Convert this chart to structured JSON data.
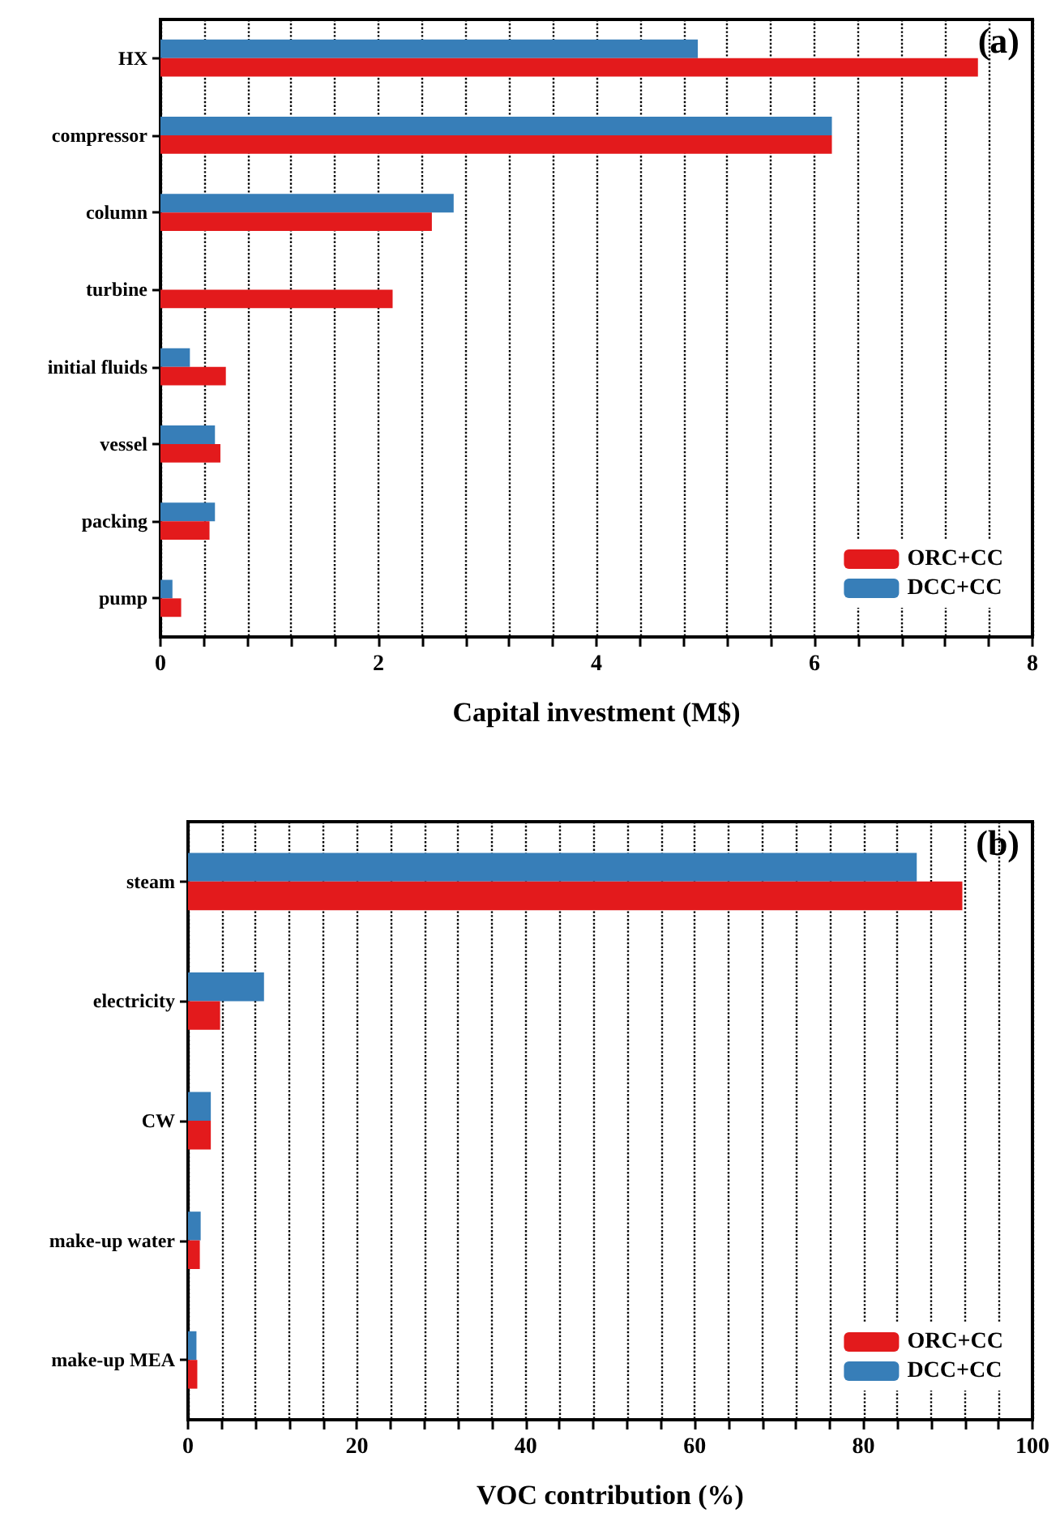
{
  "chart_data": [
    {
      "type": "bar",
      "orientation": "horizontal",
      "xlabel": "Capital investment (M$)",
      "annotations": [
        "(a)"
      ],
      "categories": [
        "HX",
        "compressor",
        "column",
        "turbine",
        "initial fluids",
        "vessel",
        "packing",
        "pump"
      ],
      "series": [
        {
          "name": "ORC+CC",
          "color": "#e31a1c",
          "values": [
            7.5,
            6.16,
            2.49,
            2.13,
            0.6,
            0.55,
            0.45,
            0.19
          ]
        },
        {
          "name": "DCC+CC",
          "color": "#377eb8",
          "values": [
            4.93,
            6.16,
            2.69,
            null,
            0.27,
            0.5,
            0.5,
            0.11
          ]
        }
      ],
      "xlim": [
        0,
        8
      ],
      "xticks": [
        0,
        {
          "value": 0.4,
          "label": null
        },
        {
          "value": 0.8,
          "label": null
        },
        {
          "value": 1.2,
          "label": null
        },
        {
          "value": 1.6,
          "label": null
        },
        2,
        {
          "value": 2.4,
          "label": null
        },
        {
          "value": 2.8,
          "label": null
        },
        {
          "value": 3.2,
          "label": null
        },
        {
          "value": 3.6,
          "label": null
        },
        4,
        {
          "value": 4.4,
          "label": null
        },
        {
          "value": 4.8,
          "label": null
        },
        {
          "value": 5.2,
          "label": null
        },
        {
          "value": 5.6,
          "label": null
        },
        6,
        {
          "value": 6.4,
          "label": null
        },
        {
          "value": 6.8,
          "label": null
        },
        {
          "value": 7.2,
          "label": null
        },
        {
          "value": 7.6,
          "label": null
        },
        8
      ],
      "grid": "x",
      "legend": "bottom right"
    },
    {
      "type": "bar",
      "orientation": "horizontal",
      "xlabel": "VOC contribution (%)",
      "annotations": [
        "(b)"
      ],
      "categories": [
        "steam",
        "electricity",
        "CW",
        "make-up water",
        "make-up MEA"
      ],
      "series": [
        {
          "name": "ORC+CC",
          "color": "#e31a1c",
          "values": [
            91.7,
            3.8,
            2.7,
            1.4,
            1.1
          ]
        },
        {
          "name": "DCC+CC",
          "color": "#377eb8",
          "values": [
            86.3,
            9.0,
            2.7,
            1.5,
            1.0
          ]
        }
      ],
      "xlim": [
        0,
        100
      ],
      "xticks": [
        0,
        {
          "value": 4,
          "label": null
        },
        {
          "value": 8,
          "label": null
        },
        {
          "value": 12,
          "label": null
        },
        {
          "value": 16,
          "label": null
        },
        20,
        {
          "value": 24,
          "label": null
        },
        {
          "value": 28,
          "label": null
        },
        {
          "value": 32,
          "label": null
        },
        {
          "value": 36,
          "label": null
        },
        40,
        {
          "value": 44,
          "label": null
        },
        {
          "value": 48,
          "label": null
        },
        {
          "value": 52,
          "label": null
        },
        {
          "value": 56,
          "label": null
        },
        60,
        {
          "value": 64,
          "label": null
        },
        {
          "value": 68,
          "label": null
        },
        {
          "value": 72,
          "label": null
        },
        {
          "value": 76,
          "label": null
        },
        80,
        {
          "value": 84,
          "label": null
        },
        {
          "value": 88,
          "label": null
        },
        {
          "value": 92,
          "label": null
        },
        {
          "value": 96,
          "label": null
        },
        100
      ],
      "grid": "x",
      "legend": "bottom right"
    }
  ]
}
